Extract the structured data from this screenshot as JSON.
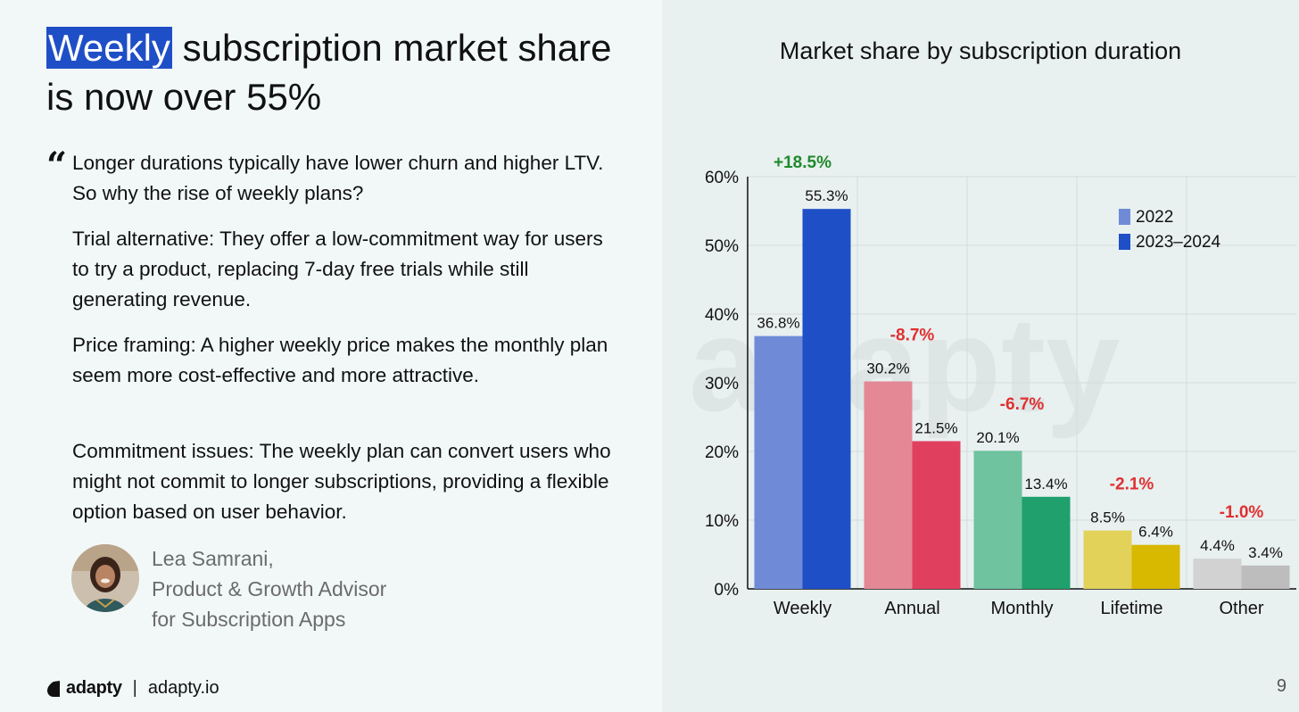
{
  "headline": {
    "highlight": "Weekly",
    "rest": " subscription market share is now over 55%"
  },
  "quote": {
    "mark": "“",
    "paragraphs": [
      "Longer durations typically have lower churn and higher LTV. So why the rise of weekly plans?",
      "Trial alternative: They offer a low-commitment way for users to try a product, replacing 7-day free trials while still generating revenue.",
      "Price framing: A higher weekly price makes the monthly plan seem more cost-effective and more attractive.",
      "Commitment issues: The weekly plan can convert users who might not commit to longer subscriptions, providing a flexible option based on user behavior."
    ]
  },
  "author": {
    "name": "Lea Samrani,",
    "role": "Product & Growth Advisor",
    "org": "for Subscription Apps"
  },
  "footer": {
    "brand": "adapty",
    "separator": "|",
    "site": "adapty.io",
    "page": "9"
  },
  "watermark": "adapty",
  "colors": {
    "highlight": "#1f4fc7",
    "increase": "#1e8a2a",
    "decrease": "#e03030",
    "weekly": [
      "#6f8bd8",
      "#1f4fc7"
    ],
    "annual": [
      "#e48896",
      "#e0405e"
    ],
    "monthly": [
      "#6fc39f",
      "#1fa06c"
    ],
    "lifetime": [
      "#e2d25a",
      "#d9b800"
    ],
    "other": [
      "#d2d2d2",
      "#bdbdbd"
    ]
  },
  "chart_data": {
    "type": "bar",
    "title": "Market share by subscription duration",
    "categories": [
      "Weekly",
      "Annual",
      "Monthly",
      "Lifetime",
      "Other"
    ],
    "series": [
      {
        "name": "2022",
        "values": [
          36.8,
          30.2,
          20.1,
          8.5,
          4.4
        ]
      },
      {
        "name": "2023–2024",
        "values": [
          55.3,
          21.5,
          13.4,
          6.4,
          3.4
        ]
      }
    ],
    "value_labels": [
      [
        "36.8%",
        "30.2%",
        "20.1%",
        "8.5%",
        "4.4%"
      ],
      [
        "55.3%",
        "21.5%",
        "13.4%",
        "6.4%",
        "3.4%"
      ]
    ],
    "changes": [
      "+18.5%",
      "-8.7%",
      "-6.7%",
      "-2.1%",
      "-1.0%"
    ],
    "yticks": [
      0,
      10,
      20,
      30,
      40,
      50,
      60
    ],
    "ytick_labels": [
      "0%",
      "10%",
      "20%",
      "30%",
      "40%",
      "50%",
      "60%"
    ],
    "ylim": [
      0,
      60
    ],
    "grid": true,
    "legend": "top-right",
    "xlabel": "",
    "ylabel": ""
  }
}
